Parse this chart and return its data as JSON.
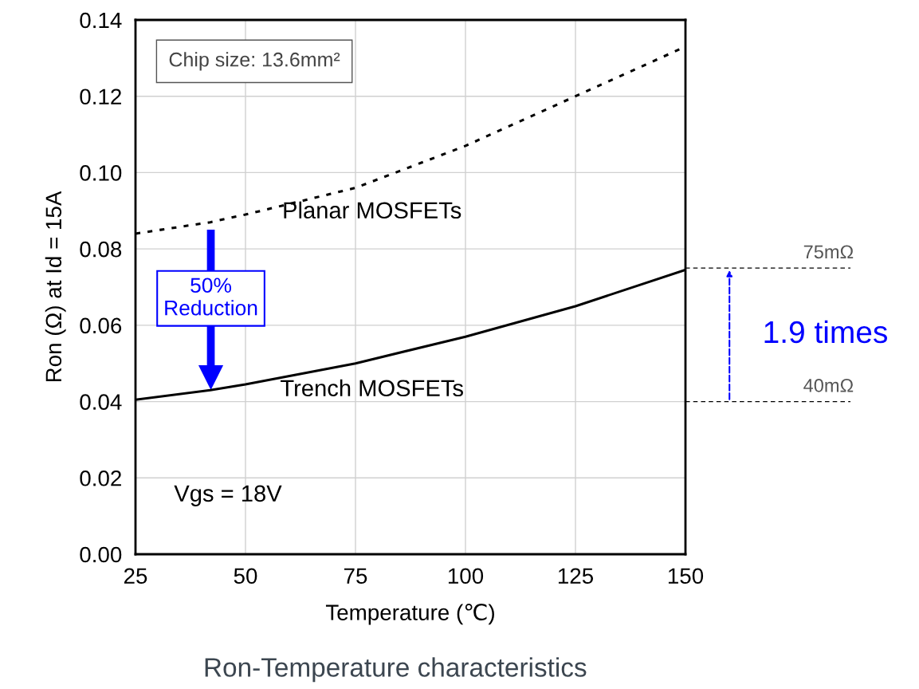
{
  "chart_data": {
    "type": "line",
    "title": "Ron-Temperature characteristics",
    "xlabel": "Temperature (℃)",
    "ylabel": "Ron (Ω) at Id = 15A",
    "x": [
      25,
      42,
      50,
      75,
      100,
      125,
      150
    ],
    "series": [
      {
        "name": "Planar MOSFETs",
        "color": "#000000",
        "line_style": "dotted",
        "values": [
          0.084,
          0.087,
          0.089,
          0.096,
          0.107,
          0.12,
          0.133
        ]
      },
      {
        "name": "Trench MOSFETs",
        "color": "#000000",
        "line_style": "solid",
        "values": [
          0.0405,
          0.043,
          0.0445,
          0.05,
          0.057,
          0.065,
          0.0745
        ]
      }
    ],
    "xlim": [
      25,
      150
    ],
    "xticks": [
      25,
      50,
      75,
      100,
      125,
      150
    ],
    "ylim": [
      0,
      0.14
    ],
    "yticks": [
      {
        "value": 0,
        "label": "0.00"
      },
      {
        "value": 0.02,
        "label": "0.02"
      },
      {
        "value": 0.04,
        "label": "0.04"
      },
      {
        "value": 0.06,
        "label": "0.06"
      },
      {
        "value": 0.08,
        "label": "0.08"
      },
      {
        "value": 0.1,
        "label": "0.10"
      },
      {
        "value": 0.12,
        "label": "0.12"
      },
      {
        "value": 0.14,
        "label": "0.14"
      }
    ],
    "grid": true,
    "marker": "none",
    "ref_lines": [
      {
        "axis": "y",
        "value": 0.075,
        "label": "75mΩ",
        "color": "#000000",
        "line_style": "dashed"
      },
      {
        "axis": "y",
        "value": 0.04,
        "label": "40mΩ",
        "color": "#000000",
        "line_style": "dashed"
      }
    ],
    "annotations": [
      "Chip size: 13.6mm²",
      "50% Reduction",
      "1.9 times",
      "Vgs = 18V"
    ]
  }
}
